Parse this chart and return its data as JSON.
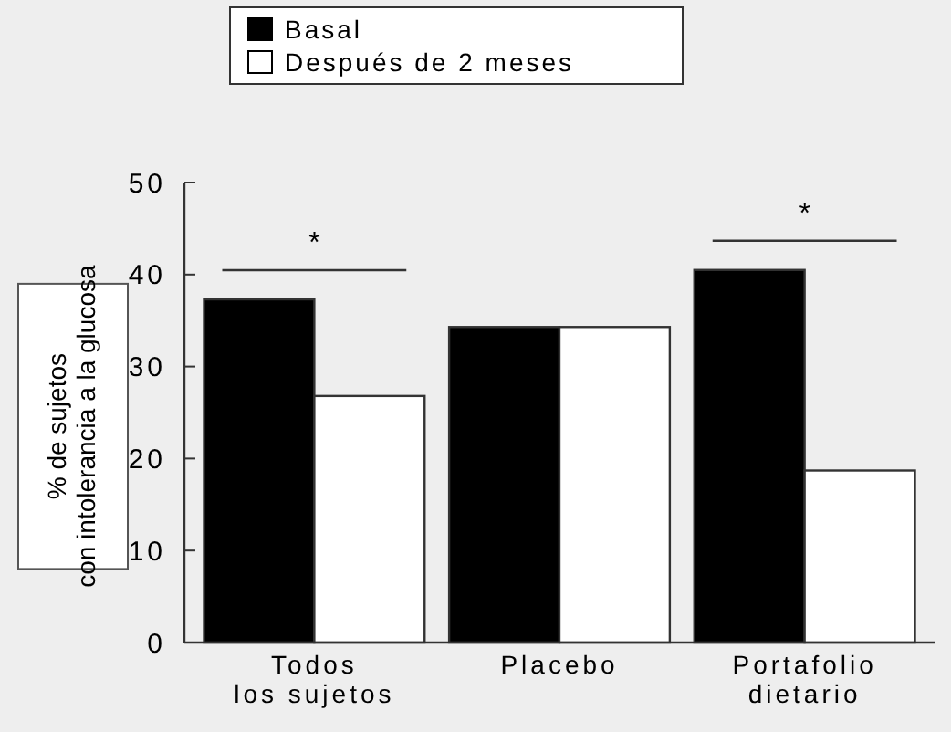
{
  "chart_data": {
    "type": "bar",
    "ylabel": "% de sujetos\ncon intolerancia a la glucosa",
    "categories": [
      "Todos\nlos sujetos",
      "Placebo",
      "Portafolio\ndietario"
    ],
    "series": [
      {
        "name": "Basal",
        "color": "#000000",
        "values": [
          37.3,
          34.3,
          40.5
        ]
      },
      {
        "name": "Después de 2 meses",
        "color": "#ffffff",
        "values": [
          26.8,
          34.3,
          18.7
        ]
      }
    ],
    "ylim": [
      0,
      50
    ],
    "yticks": [
      0,
      10,
      20,
      30,
      40,
      50
    ],
    "grid": false,
    "legend": "top left",
    "annotations": [
      "*",
      "*"
    ]
  }
}
